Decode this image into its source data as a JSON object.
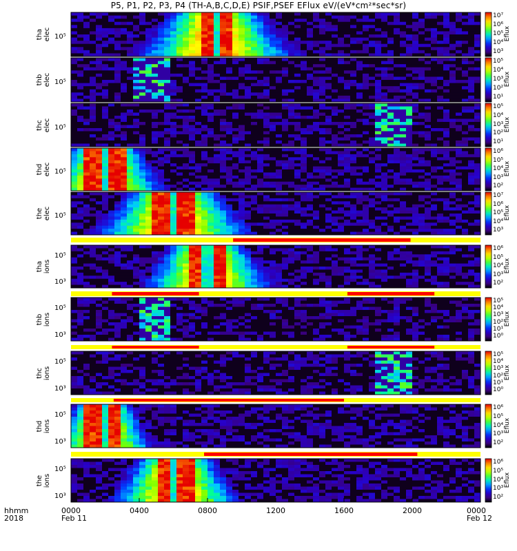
{
  "chart_data": {
    "type": "heatmap",
    "title": "P5, P1, P2, P3, P4  (TH-A,B,C,D,E) PSIF,PSEF EFlux eV/(eV*cm²*sec*sr)",
    "x_axis": {
      "row_labels": [
        "hhmm",
        "2018"
      ],
      "ticks": [
        "0000",
        "0400",
        "0800",
        "1200",
        "1600",
        "2000",
        "0000"
      ],
      "dates": [
        "Feb 11",
        "Feb 12"
      ],
      "range_hours": [
        0,
        24
      ]
    },
    "colorbar_label": "Eflux",
    "panels": [
      {
        "id": "tha_elec",
        "label": [
          "tha",
          "elec"
        ],
        "ytick": "10⁵",
        "cbar_ticks": [
          "10⁷",
          "10⁶",
          "10⁵",
          "10⁴",
          "10³"
        ],
        "max_flux_hours": [
          7.5,
          9.5
        ],
        "bright_range": [
          2.0,
          14.0
        ],
        "sparse": false
      },
      {
        "id": "thb_elec",
        "label": [
          "thb",
          "elec"
        ],
        "ytick": "10⁵",
        "cbar_ticks": [
          "10⁵",
          "10⁴",
          "10³",
          "10²",
          "10¹"
        ],
        "burst_hours": [
          3.8,
          5.8
        ],
        "sparse": true
      },
      {
        "id": "thc_elec",
        "label": [
          "thc",
          "elec"
        ],
        "ytick": "10⁵",
        "cbar_ticks": [
          "10⁵",
          "10⁴",
          "10³",
          "10²",
          "10¹"
        ],
        "burst_hours": [
          17.8,
          20.0
        ],
        "sparse": true
      },
      {
        "id": "thd_elec",
        "label": [
          "thd",
          "elec"
        ],
        "ytick": "10⁵",
        "cbar_ticks": [
          "10⁶",
          "10⁵",
          "10⁴",
          "10³",
          "10²"
        ],
        "max_flux_hours": [
          0.8,
          3.2
        ],
        "bright_range": [
          0.0,
          9.0
        ],
        "sparse": false
      },
      {
        "id": "the_elec",
        "label": [
          "the",
          "elec"
        ],
        "ytick": "10⁵",
        "cbar_ticks": [
          "10⁷",
          "10⁶",
          "10⁵",
          "10⁴",
          "10³"
        ],
        "max_flux_hours": [
          4.8,
          7.2
        ],
        "bright_range": [
          0.5,
          12.5
        ],
        "sparse": false
      },
      {
        "id": "tha_ions",
        "label": [
          "tha",
          "ions"
        ],
        "ytick": "10⁵",
        "ytick2": "10³",
        "cbar_ticks": [
          "10⁶",
          "10⁵",
          "10⁴",
          "10³",
          "10²"
        ],
        "max_flux_hours": [
          7.0,
          9.0
        ],
        "bright_range": [
          3.0,
          13.0
        ],
        "sparse": false
      },
      {
        "id": "thb_ions",
        "label": [
          "thb",
          "ions"
        ],
        "ytick": "10⁵",
        "ytick2": "10³",
        "cbar_ticks": [
          "10⁵",
          "10⁴",
          "10³",
          "10²",
          "10¹",
          "10⁰"
        ],
        "burst_hours": [
          3.9,
          5.8
        ],
        "sparse": true
      },
      {
        "id": "thc_ions",
        "label": [
          "thc",
          "ions"
        ],
        "ytick": "10⁵",
        "ytick2": "10³",
        "cbar_ticks": [
          "10⁵",
          "10⁴",
          "10³",
          "10²",
          "10¹",
          "10⁰"
        ],
        "burst_hours": [
          17.8,
          19.9
        ],
        "sparse": true
      },
      {
        "id": "thd_ions",
        "label": [
          "thd",
          "ions"
        ],
        "ytick": "10⁵",
        "ytick2": "10³",
        "cbar_ticks": [
          "10⁶",
          "10⁵",
          "10⁴",
          "10³",
          "10²"
        ],
        "max_flux_hours": [
          0.8,
          3.0
        ],
        "bright_range": [
          0.0,
          7.5
        ],
        "sparse": false
      },
      {
        "id": "the_ions",
        "label": [
          "the",
          "ions"
        ],
        "ytick": "10⁵",
        "ytick2": "10³",
        "cbar_ticks": [
          "10⁶",
          "10⁵",
          "10⁴",
          "10³",
          "10²"
        ],
        "max_flux_hours": [
          5.0,
          7.2
        ],
        "bright_range": [
          1.5,
          11.5
        ],
        "sparse": false
      }
    ],
    "mode_bars": [
      {
        "after_panel": "the_elec",
        "red_hours": [
          [
            9.5,
            19.9
          ]
        ]
      },
      {
        "after_panel": "tha_ions",
        "red_hours": [
          [
            2.4,
            7.5
          ],
          [
            16.2,
            21.3
          ]
        ]
      },
      {
        "after_panel": "thb_ions",
        "red_hours": [
          [
            2.4,
            7.5
          ],
          [
            16.2,
            21.3
          ]
        ]
      },
      {
        "after_panel": "thc_ions",
        "red_hours": [
          [
            2.5,
            16.0
          ]
        ]
      },
      {
        "after_panel": "thd_ions",
        "red_hours": [
          [
            7.8,
            20.3
          ]
        ]
      }
    ],
    "colors": {
      "bar_yellow": "#ffff00",
      "bar_red": "#ff0000",
      "background": "#ffffff"
    }
  }
}
